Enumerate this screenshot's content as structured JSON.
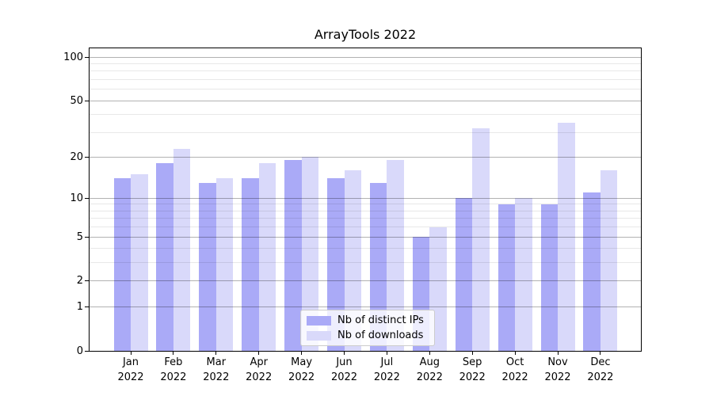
{
  "title": "ArrayTools 2022",
  "chart_data": {
    "type": "bar",
    "title": "ArrayTools 2022",
    "categories": [
      "Jan 2022",
      "Feb 2022",
      "Mar 2022",
      "Apr 2022",
      "May 2022",
      "Jun 2022",
      "Jul 2022",
      "Aug 2022",
      "Sep 2022",
      "Oct 2022",
      "Nov 2022",
      "Dec 2022"
    ],
    "series": [
      {
        "name": "Nb of distinct IPs",
        "color": "#aaaaf7",
        "values": [
          14,
          18,
          13,
          14,
          19,
          14,
          13,
          5,
          10,
          9,
          9,
          11
        ]
      },
      {
        "name": "Nb of downloads",
        "color": "#d9d9fa",
        "values": [
          15,
          23,
          14,
          18,
          20,
          16,
          19,
          6,
          32,
          10,
          35,
          16
        ]
      }
    ],
    "xlabel": "",
    "ylabel": "",
    "y_scale": "log1p",
    "ylim": [
      0,
      115
    ],
    "y_ticks_major": [
      0,
      1,
      2,
      5,
      10,
      20,
      50,
      100
    ],
    "y_tick_labels": [
      "0",
      "1",
      "2",
      "5",
      "10",
      "20",
      "50",
      "100"
    ],
    "y_ticks_minor": [
      3,
      4,
      6,
      7,
      8,
      9,
      30,
      40,
      60,
      70,
      80,
      90
    ],
    "grid": "on",
    "legend_position": "lower center inside"
  }
}
